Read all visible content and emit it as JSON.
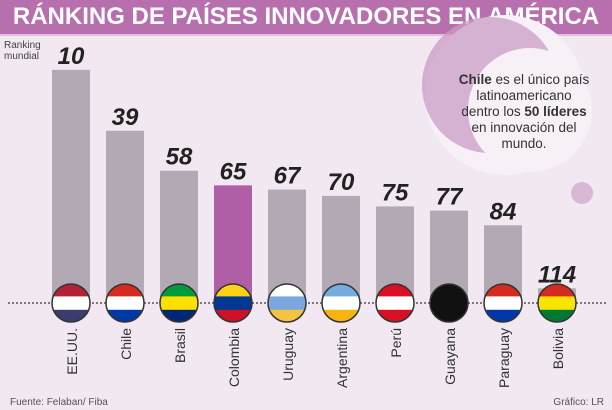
{
  "title": "RÁNKING DE PAÍSES  INNOVADORES EN AMÉRICA",
  "ylabel_line1": "Ranking",
  "ylabel_line2": "mundial",
  "note": {
    "pre": "Chile",
    "mid1": " es el único país latinoamericano dentro los ",
    "bold2": "50 líderes",
    "post": " en innovación del mundo."
  },
  "source": "Fuente: Felaban/ Fiba",
  "credit": "Gráfico: LR",
  "colors": {
    "bar": "#b3a9b5",
    "highlight": "#b05fa6",
    "header": "#b86fad",
    "background": "#f1e8f1"
  },
  "chart_data": {
    "type": "bar",
    "title": "RÁNKING DE PAÍSES  INNOVADORES EN AMÉRICA",
    "ylabel": "Ranking mundial",
    "categories": [
      "EE.UU.",
      "Chile",
      "Brasil",
      "Colombia",
      "Uruguay",
      "Argentina",
      "Perú",
      "Guayana",
      "Paraguay",
      "Bolivia"
    ],
    "values": [
      10,
      39,
      58,
      65,
      67,
      70,
      75,
      77,
      84,
      114
    ],
    "highlight": "Colombia",
    "axis_inverted": true,
    "grid": false
  }
}
